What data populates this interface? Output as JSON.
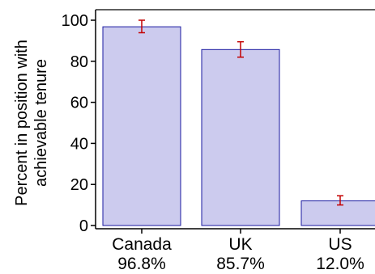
{
  "chart_data": {
    "type": "bar",
    "categories": [
      "Canada",
      "UK",
      "US"
    ],
    "value_labels": [
      "96.8%",
      "85.7%",
      "12.0%"
    ],
    "values": [
      96.8,
      85.7,
      12.0
    ],
    "error_low": [
      93.9,
      82.0,
      10.0
    ],
    "error_high": [
      100.0,
      89.5,
      14.5
    ],
    "ylabel_line1": "Percent in position with",
    "ylabel_line2": "achievable tenure",
    "ylim": [
      0,
      102
    ],
    "yticks": [
      0,
      20,
      40,
      60,
      80,
      100
    ],
    "grid": false,
    "colors": {
      "bar_fill": "#cccbee",
      "bar_stroke": "#1a1aa0",
      "error_bar": "#c40000",
      "axis": "#000000"
    }
  }
}
